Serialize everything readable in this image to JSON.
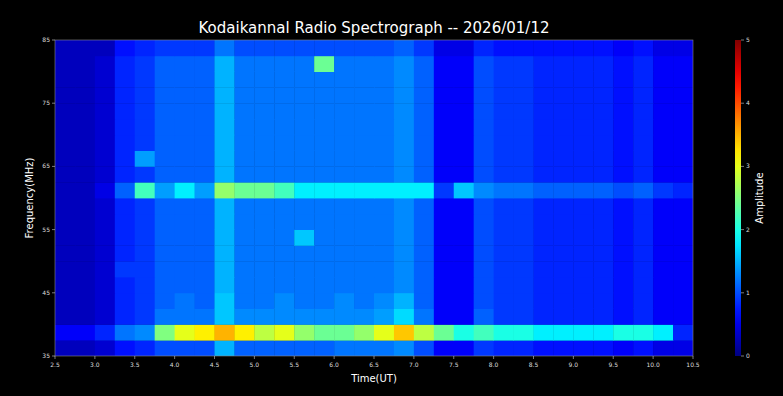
{
  "chart_data": {
    "type": "heatmap",
    "title": "Kodaikannal Radio Spectrograph -- 2026/01/12",
    "x_label": "Time(UT)",
    "y_label": "Frequency(MHz)",
    "xlim": [
      2.5,
      10.5
    ],
    "ylim": [
      35,
      85
    ],
    "xticks": [
      2.5,
      {
        "value": 3,
        "label": "3.0"
      },
      3.5,
      {
        "value": 4,
        "label": "4.0"
      },
      4.5,
      {
        "value": 5,
        "label": "5.0"
      },
      5.5,
      {
        "value": 6,
        "label": "6.0"
      },
      6.5,
      {
        "value": 7,
        "label": "7.0"
      },
      7.5,
      {
        "value": 8,
        "label": "8.0"
      },
      8.5,
      {
        "value": 9,
        "label": "9.0"
      },
      9.5,
      {
        "value": 10,
        "label": "10.0"
      },
      10.5
    ],
    "yticks": [
      35,
      45,
      55,
      65,
      75,
      85
    ],
    "x": [
      2.625,
      2.875,
      3.125,
      3.375,
      3.625,
      3.875,
      4.125,
      4.375,
      4.625,
      4.875,
      5.125,
      5.375,
      5.625,
      5.875,
      6.125,
      6.375,
      6.625,
      6.875,
      7.125,
      7.375,
      7.625,
      7.875,
      8.125,
      8.375,
      8.625,
      8.875,
      9.125,
      9.375,
      9.625,
      9.875,
      10.125,
      10.375
    ],
    "y": [
      36.25,
      38.75,
      41.25,
      43.75,
      46.25,
      48.75,
      51.25,
      53.75,
      56.25,
      58.75,
      61.25,
      63.75,
      66.25,
      68.75,
      71.25,
      73.75,
      76.25,
      78.75,
      81.25,
      83.75
    ],
    "z": [
      [
        0.3,
        0.3,
        0.4,
        0.7,
        0.8,
        1.0,
        1.0,
        1.0,
        1.5,
        1.1,
        1.1,
        1.1,
        1.1,
        1.1,
        1.2,
        1.2,
        1.2,
        1.3,
        1.0,
        0.6,
        0.6,
        0.9,
        0.8,
        0.8,
        0.7,
        0.7,
        0.7,
        0.7,
        0.6,
        0.7,
        0.5,
        0.5
      ],
      [
        0.6,
        0.6,
        0.8,
        1.2,
        1.3,
        2.5,
        3.0,
        3.2,
        3.5,
        3.2,
        2.8,
        3.0,
        2.6,
        2.4,
        2.4,
        2.6,
        3.0,
        3.4,
        2.8,
        2.4,
        2.0,
        2.2,
        2.0,
        2.0,
        1.8,
        1.8,
        1.8,
        1.8,
        2.0,
        2.0,
        1.8,
        0.8
      ],
      [
        0.3,
        0.3,
        0.4,
        0.8,
        0.9,
        1.2,
        1.2,
        1.2,
        1.6,
        1.3,
        1.3,
        1.3,
        1.3,
        1.3,
        1.3,
        1.3,
        1.4,
        1.7,
        1.2,
        0.6,
        0.6,
        1.1,
        0.9,
        0.9,
        0.8,
        0.8,
        0.8,
        0.8,
        0.7,
        0.8,
        0.6,
        0.6
      ],
      [
        0.3,
        0.3,
        0.4,
        0.8,
        0.9,
        1.1,
        1.2,
        1.1,
        1.6,
        1.2,
        1.2,
        1.3,
        1.2,
        1.2,
        1.3,
        1.2,
        1.3,
        1.5,
        1.1,
        0.6,
        0.6,
        1.0,
        0.9,
        0.9,
        0.8,
        0.8,
        0.8,
        0.8,
        0.7,
        0.8,
        0.6,
        0.6
      ],
      [
        0.3,
        0.3,
        0.4,
        0.8,
        0.9,
        1.1,
        1.1,
        1.1,
        1.5,
        1.2,
        1.2,
        1.2,
        1.2,
        1.2,
        1.2,
        1.2,
        1.2,
        1.3,
        1.1,
        0.6,
        0.6,
        1.0,
        0.9,
        0.9,
        0.8,
        0.8,
        0.8,
        0.8,
        0.7,
        0.8,
        0.6,
        0.6
      ],
      [
        0.3,
        0.3,
        0.4,
        0.9,
        0.9,
        1.1,
        1.1,
        1.1,
        1.5,
        1.2,
        1.2,
        1.2,
        1.2,
        1.2,
        1.2,
        1.2,
        1.2,
        1.3,
        1.1,
        0.6,
        0.6,
        1.0,
        0.9,
        0.9,
        0.8,
        0.8,
        0.8,
        0.8,
        0.7,
        0.8,
        0.6,
        0.6
      ],
      [
        0.3,
        0.3,
        0.4,
        0.8,
        0.9,
        1.1,
        1.1,
        1.1,
        1.5,
        1.2,
        1.2,
        1.2,
        1.2,
        1.2,
        1.2,
        1.2,
        1.2,
        1.3,
        1.1,
        0.6,
        0.6,
        1.0,
        0.9,
        0.9,
        0.8,
        0.8,
        0.8,
        0.8,
        0.7,
        0.8,
        0.6,
        0.6
      ],
      [
        0.3,
        0.3,
        0.4,
        0.8,
        0.9,
        1.1,
        1.1,
        1.1,
        1.5,
        1.2,
        1.2,
        1.2,
        1.6,
        1.2,
        1.2,
        1.2,
        1.2,
        1.3,
        1.1,
        0.6,
        0.6,
        1.0,
        0.9,
        0.9,
        0.8,
        0.8,
        0.8,
        0.8,
        0.7,
        0.8,
        0.6,
        0.6
      ],
      [
        0.3,
        0.3,
        0.4,
        0.8,
        0.9,
        1.1,
        1.1,
        1.1,
        1.5,
        1.2,
        1.2,
        1.2,
        1.2,
        1.2,
        1.2,
        1.2,
        1.2,
        1.3,
        1.1,
        0.6,
        0.6,
        1.0,
        0.9,
        0.9,
        0.8,
        0.8,
        0.8,
        0.8,
        0.7,
        0.8,
        0.6,
        0.6
      ],
      [
        0.3,
        0.3,
        0.4,
        0.8,
        0.9,
        1.1,
        1.1,
        1.1,
        1.5,
        1.2,
        1.2,
        1.2,
        1.2,
        1.2,
        1.2,
        1.2,
        1.2,
        1.3,
        1.1,
        0.6,
        0.6,
        1.0,
        0.9,
        0.9,
        0.8,
        0.8,
        0.8,
        0.8,
        0.7,
        0.8,
        0.6,
        0.6
      ],
      [
        0.3,
        0.3,
        0.5,
        1.1,
        2.2,
        1.4,
        1.8,
        1.4,
        2.6,
        2.4,
        2.4,
        2.2,
        1.8,
        1.8,
        1.8,
        1.8,
        1.8,
        1.8,
        1.8,
        0.9,
        1.6,
        1.3,
        1.2,
        1.2,
        1.1,
        1.1,
        1.1,
        1.1,
        1.0,
        1.1,
        0.9,
        0.8
      ],
      [
        0.3,
        0.3,
        0.4,
        0.8,
        0.9,
        1.1,
        1.1,
        1.1,
        1.5,
        1.2,
        1.2,
        1.2,
        1.2,
        1.2,
        1.2,
        1.2,
        1.2,
        1.3,
        1.1,
        0.6,
        0.6,
        1.0,
        0.9,
        0.9,
        0.8,
        0.8,
        0.8,
        0.8,
        0.7,
        0.8,
        0.6,
        0.6
      ],
      [
        0.3,
        0.3,
        0.4,
        0.8,
        1.4,
        1.1,
        1.1,
        1.1,
        1.5,
        1.2,
        1.2,
        1.2,
        1.2,
        1.2,
        1.2,
        1.2,
        1.2,
        1.3,
        1.1,
        0.6,
        0.6,
        1.0,
        0.9,
        0.9,
        0.8,
        0.8,
        0.8,
        0.8,
        0.7,
        0.8,
        0.6,
        0.6
      ],
      [
        0.3,
        0.3,
        0.4,
        0.8,
        0.9,
        1.1,
        1.1,
        1.1,
        1.5,
        1.2,
        1.2,
        1.2,
        1.2,
        1.2,
        1.2,
        1.2,
        1.2,
        1.3,
        1.1,
        0.6,
        0.6,
        1.0,
        0.9,
        0.9,
        0.8,
        0.8,
        0.8,
        0.8,
        0.7,
        0.8,
        0.6,
        0.6
      ],
      [
        0.3,
        0.3,
        0.4,
        0.8,
        0.9,
        1.1,
        1.1,
        1.1,
        1.5,
        1.2,
        1.2,
        1.2,
        1.2,
        1.2,
        1.2,
        1.2,
        1.2,
        1.3,
        1.1,
        0.6,
        0.6,
        1.0,
        0.9,
        0.9,
        0.8,
        0.8,
        0.8,
        0.8,
        0.7,
        0.8,
        0.6,
        0.6
      ],
      [
        0.3,
        0.3,
        0.4,
        0.8,
        0.9,
        1.1,
        1.1,
        1.1,
        1.5,
        1.2,
        1.2,
        1.2,
        1.2,
        1.2,
        1.2,
        1.2,
        1.2,
        1.3,
        1.1,
        0.6,
        0.6,
        1.0,
        0.9,
        0.9,
        0.8,
        0.8,
        0.8,
        0.8,
        0.7,
        0.8,
        0.6,
        0.6
      ],
      [
        0.3,
        0.3,
        0.4,
        0.8,
        0.9,
        1.1,
        1.1,
        1.1,
        1.5,
        1.2,
        1.2,
        1.2,
        1.2,
        1.2,
        1.2,
        1.2,
        1.2,
        1.3,
        1.1,
        0.6,
        0.6,
        1.0,
        0.9,
        0.9,
        0.8,
        0.8,
        0.8,
        0.8,
        0.7,
        0.8,
        0.6,
        0.6
      ],
      [
        0.3,
        0.3,
        0.4,
        0.8,
        0.9,
        1.1,
        1.1,
        1.1,
        1.5,
        1.2,
        1.2,
        1.2,
        1.2,
        1.2,
        1.2,
        1.2,
        1.2,
        1.3,
        1.1,
        0.6,
        0.6,
        1.0,
        0.9,
        0.9,
        0.8,
        0.8,
        0.8,
        0.8,
        0.7,
        0.8,
        0.6,
        0.6
      ],
      [
        0.3,
        0.3,
        0.4,
        0.8,
        0.9,
        1.1,
        1.1,
        1.1,
        1.5,
        1.2,
        1.2,
        1.2,
        1.2,
        2.4,
        1.2,
        1.2,
        1.2,
        1.3,
        1.1,
        0.6,
        0.6,
        1.0,
        0.9,
        0.9,
        0.8,
        0.8,
        0.8,
        0.8,
        0.7,
        0.8,
        0.6,
        0.6
      ],
      [
        0.3,
        0.3,
        0.3,
        0.7,
        0.8,
        0.9,
        0.9,
        0.9,
        1.2,
        1.0,
        1.0,
        1.0,
        1.0,
        1.0,
        1.0,
        1.0,
        1.0,
        1.1,
        0.9,
        0.5,
        0.5,
        0.8,
        0.7,
        0.7,
        0.7,
        0.7,
        0.7,
        0.7,
        0.6,
        0.7,
        0.5,
        0.5
      ]
    ],
    "colorbar": {
      "label": "Amplitude",
      "range": [
        0,
        5
      ],
      "ticks": [
        0,
        1,
        2,
        3,
        4,
        5
      ]
    }
  }
}
